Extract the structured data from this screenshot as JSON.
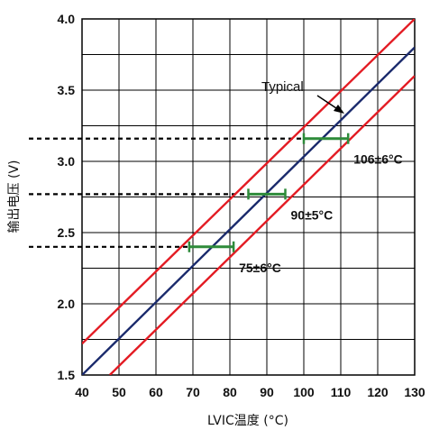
{
  "chart_data": {
    "type": "line",
    "title": "",
    "xlabel": "LVIC温度 (°C)",
    "ylabel": "输出电压 (V)",
    "xlim": [
      40,
      130
    ],
    "ylim": [
      1.5,
      4.0
    ],
    "x_ticks": [
      "40",
      "50",
      "60",
      "70",
      "80",
      "90",
      "100",
      "110",
      "120",
      "130"
    ],
    "y_ticks": [
      "1.5",
      "2.0",
      "2.5",
      "3.0",
      "3.5",
      "4.0"
    ],
    "grid": true,
    "colors": {
      "typical": "#1a2a6c",
      "limits": "#e31b23",
      "ranges": "#2e8b3a",
      "grid": "#000000"
    },
    "series": [
      {
        "name": "Typical",
        "role": "typical",
        "x": [
          40,
          130
        ],
        "y": [
          1.5,
          3.8
        ]
      },
      {
        "role": "limit",
        "x": [
          40,
          130
        ],
        "y": [
          1.72,
          4.0
        ]
      },
      {
        "role": "limit",
        "x": [
          47.5,
          130
        ],
        "y": [
          1.5,
          3.6
        ]
      }
    ],
    "typical_label": "Typical",
    "temperature_ranges": [
      {
        "label": "75±6°C",
        "voltage": 2.4,
        "x_min": 69,
        "x_max": 81
      },
      {
        "label": "90±5°C",
        "voltage": 2.77,
        "x_min": 85,
        "x_max": 95
      },
      {
        "label": "106±6°C",
        "voltage": 3.16,
        "x_min": 100,
        "x_max": 112
      }
    ]
  }
}
